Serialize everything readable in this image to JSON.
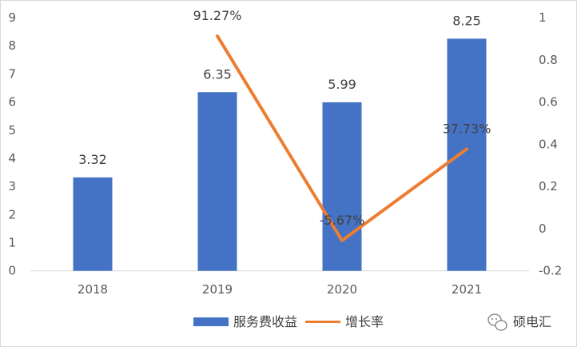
{
  "chart_data": {
    "type": "bar",
    "categories": [
      "2018",
      "2019",
      "2020",
      "2021"
    ],
    "series": [
      {
        "name": "服务费收益",
        "type": "bar",
        "axis": "left",
        "values": [
          3.32,
          6.35,
          5.99,
          8.25
        ],
        "labels": [
          "3.32",
          "6.35",
          "5.99",
          "8.25"
        ],
        "color": "#4472C4"
      },
      {
        "name": "增长率",
        "type": "line",
        "axis": "right",
        "values": [
          null,
          0.9127,
          -0.0567,
          0.3773
        ],
        "labels": [
          "",
          "91.27%",
          "-5.67%",
          "37.73%"
        ],
        "color": "#ED7D31"
      }
    ],
    "y_left": {
      "ylim": [
        0,
        9
      ],
      "ticks": [
        0,
        1,
        2,
        3,
        4,
        5,
        6,
        7,
        8,
        9
      ],
      "tick_labels": [
        "0",
        "1",
        "2",
        "3",
        "4",
        "5",
        "6",
        "7",
        "8",
        "9"
      ]
    },
    "y_right": {
      "ylim": [
        -0.2,
        1
      ],
      "ticks": [
        -0.2,
        0,
        0.2,
        0.4,
        0.6,
        0.8,
        1
      ],
      "tick_labels": [
        "-0.2",
        "0",
        "0.2",
        "0.4",
        "0.6",
        "0.8",
        "1"
      ]
    },
    "legend": {
      "position": "bottom",
      "items": [
        "服务费收益",
        "增长率"
      ]
    },
    "grid": false,
    "title": "",
    "xlabel": "",
    "ylabel": ""
  },
  "watermark": {
    "text": "硕电汇",
    "icon": "wechat-icon"
  }
}
